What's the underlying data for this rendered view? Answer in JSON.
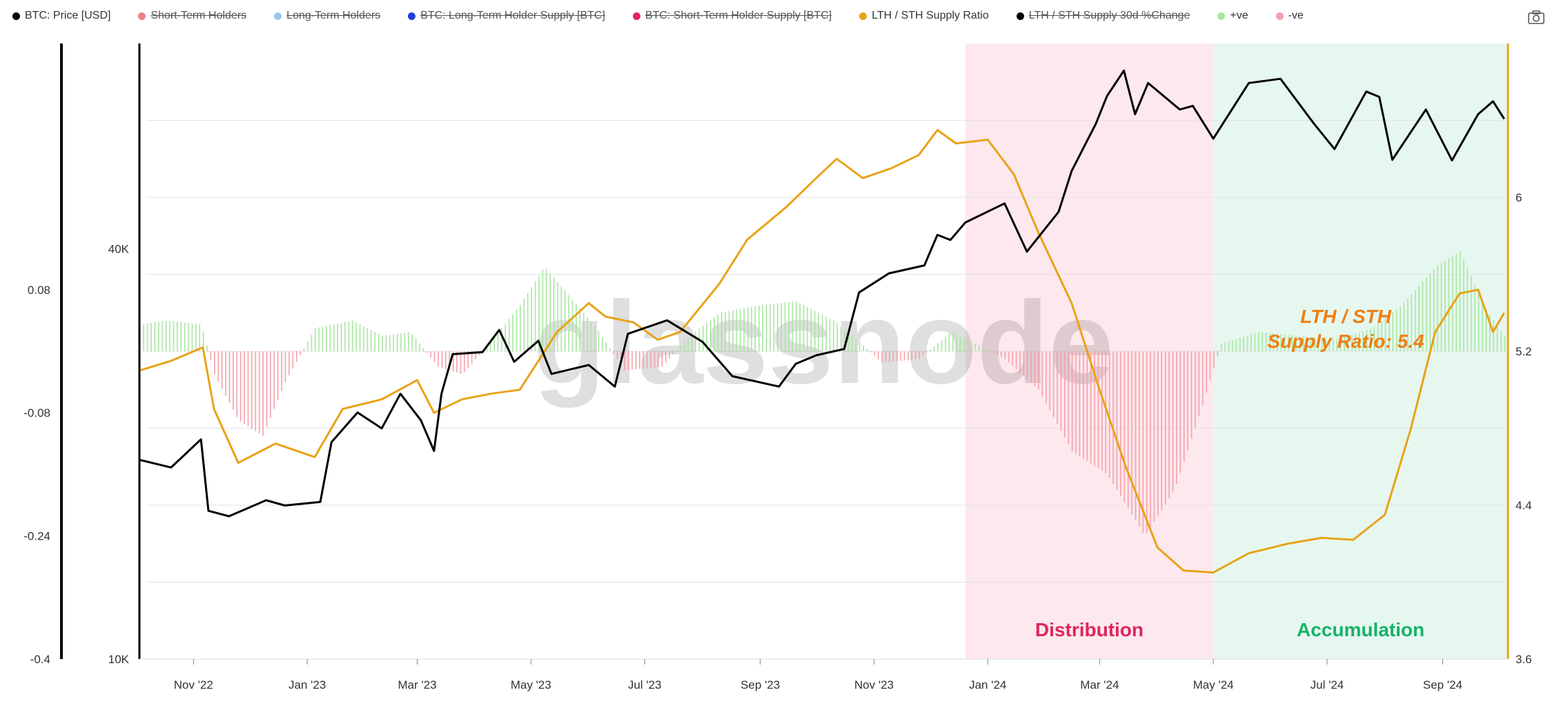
{
  "legend": [
    {
      "label": "BTC: Price [USD]",
      "color": "#000000",
      "active": true
    },
    {
      "label": "Short-Term Holders",
      "color": "#f08080",
      "active": false
    },
    {
      "label": "Long-Term Holders",
      "color": "#9ec5f0",
      "active": false
    },
    {
      "label": "BTC: Long-Term Holder Supply [BTC]",
      "color": "#1f3fd6",
      "active": false
    },
    {
      "label": "BTC: Short-Term Holder Supply [BTC]",
      "color": "#e0245e",
      "active": false
    },
    {
      "label": "LTH / STH Supply Ratio",
      "color": "#e8a317",
      "active": true
    },
    {
      "label": "LTH / STH Supply 30d %Change",
      "color": "#000000",
      "active": false
    },
    {
      "label": "+ve",
      "color": "#a8e6a0",
      "active": true
    },
    {
      "label": "-ve",
      "color": "#f5a0a8",
      "active": true
    }
  ],
  "toolbar": {
    "camera_icon": "camera-icon"
  },
  "chart_data": {
    "type": "line",
    "watermark": "glassnode",
    "x_ticks": [
      "Nov '22",
      "Jan '23",
      "Mar '23",
      "May '23",
      "Jul '23",
      "Sep '23",
      "Nov '23",
      "Jan '24",
      "Mar '24",
      "May '24",
      "Jul '24",
      "Sep '24"
    ],
    "x_tick_dates": [
      "2022-11-01",
      "2023-01-01",
      "2023-03-01",
      "2023-05-01",
      "2023-07-01",
      "2023-09-01",
      "2023-11-01",
      "2024-01-01",
      "2024-03-01",
      "2024-05-01",
      "2024-07-01",
      "2024-09-01"
    ],
    "x_range": [
      "2022-10-03",
      "2024-10-06"
    ],
    "y_left_outer": {
      "ticks": [
        "0.08",
        "-0.08",
        "-0.24",
        "-0.4"
      ],
      "values": [
        0.08,
        -0.08,
        -0.24,
        -0.4
      ],
      "range": [
        -0.4,
        0.4
      ]
    },
    "y_left_inner": {
      "ticks": [
        "40K",
        "10K"
      ],
      "values": [
        40000,
        10000
      ],
      "scale": "log",
      "range": [
        10000,
        80000
      ]
    },
    "y_right": {
      "ticks": [
        "6",
        "5.2",
        "4.4",
        "3.6"
      ],
      "values": [
        6,
        5.2,
        4.4,
        3.6
      ],
      "range": [
        3.6,
        6.8
      ],
      "color": "#e8a317"
    },
    "regions": [
      {
        "label": "Distribution",
        "from": "2023-12-20",
        "to": "2024-05-01",
        "fill": "#fde8ee",
        "label_color": "#e0245e"
      },
      {
        "label": "Accumulation",
        "from": "2024-05-01",
        "to": "2024-10-06",
        "fill": "#e6f7ef",
        "label_color": "#17b26a"
      }
    ],
    "annotation": {
      "lines": [
        "LTH / STH",
        "Supply Ratio: 5.4"
      ],
      "color": "#f07f13"
    },
    "grid": true,
    "series": [
      {
        "name": "BTC: Price [USD]",
        "axis": "y_left_inner",
        "color": "#000000",
        "points": [
          [
            "2022-10-03",
            19600
          ],
          [
            "2022-10-20",
            19100
          ],
          [
            "2022-11-05",
            21000
          ],
          [
            "2022-11-09",
            16500
          ],
          [
            "2022-11-20",
            16200
          ],
          [
            "2022-12-10",
            17100
          ],
          [
            "2022-12-20",
            16800
          ],
          [
            "2023-01-08",
            17000
          ],
          [
            "2023-01-14",
            20800
          ],
          [
            "2023-01-28",
            23000
          ],
          [
            "2023-02-10",
            21800
          ],
          [
            "2023-02-20",
            24500
          ],
          [
            "2023-03-03",
            22400
          ],
          [
            "2023-03-10",
            20200
          ],
          [
            "2023-03-14",
            24500
          ],
          [
            "2023-03-20",
            28000
          ],
          [
            "2023-04-05",
            28200
          ],
          [
            "2023-04-14",
            30400
          ],
          [
            "2023-04-22",
            27300
          ],
          [
            "2023-05-05",
            29300
          ],
          [
            "2023-05-12",
            26200
          ],
          [
            "2023-06-01",
            27000
          ],
          [
            "2023-06-15",
            25100
          ],
          [
            "2023-06-22",
            30000
          ],
          [
            "2023-07-13",
            31400
          ],
          [
            "2023-08-01",
            29200
          ],
          [
            "2023-08-17",
            26000
          ],
          [
            "2023-09-11",
            25100
          ],
          [
            "2023-09-20",
            27100
          ],
          [
            "2023-10-01",
            27900
          ],
          [
            "2023-10-16",
            28500
          ],
          [
            "2023-10-24",
            34500
          ],
          [
            "2023-11-09",
            36800
          ],
          [
            "2023-11-28",
            37800
          ],
          [
            "2023-12-05",
            41900
          ],
          [
            "2023-12-12",
            41200
          ],
          [
            "2023-12-20",
            43700
          ],
          [
            "2024-01-10",
            46600
          ],
          [
            "2024-01-22",
            39600
          ],
          [
            "2024-02-08",
            45300
          ],
          [
            "2024-02-15",
            52000
          ],
          [
            "2024-02-28",
            61000
          ],
          [
            "2024-03-05",
            67000
          ],
          [
            "2024-03-14",
            73000
          ],
          [
            "2024-03-20",
            63000
          ],
          [
            "2024-03-27",
            70000
          ],
          [
            "2024-04-13",
            64000
          ],
          [
            "2024-04-20",
            64800
          ],
          [
            "2024-05-01",
            58000
          ],
          [
            "2024-05-20",
            70000
          ],
          [
            "2024-06-06",
            71000
          ],
          [
            "2024-06-24",
            61000
          ],
          [
            "2024-07-05",
            56000
          ],
          [
            "2024-07-22",
            68000
          ],
          [
            "2024-07-29",
            66800
          ],
          [
            "2024-08-05",
            54000
          ],
          [
            "2024-08-23",
            64000
          ],
          [
            "2024-09-06",
            53900
          ],
          [
            "2024-09-20",
            63000
          ],
          [
            "2024-09-28",
            65800
          ],
          [
            "2024-10-04",
            62000
          ]
        ]
      },
      {
        "name": "LTH / STH Supply Ratio",
        "axis": "y_right",
        "color": "#e8a317",
        "points": [
          [
            "2022-10-03",
            5.1
          ],
          [
            "2022-10-20",
            5.15
          ],
          [
            "2022-11-06",
            5.22
          ],
          [
            "2022-11-12",
            4.9
          ],
          [
            "2022-11-25",
            4.62
          ],
          [
            "2022-12-15",
            4.72
          ],
          [
            "2023-01-05",
            4.65
          ],
          [
            "2023-01-20",
            4.9
          ],
          [
            "2023-02-10",
            4.95
          ],
          [
            "2023-03-01",
            5.05
          ],
          [
            "2023-03-10",
            4.88
          ],
          [
            "2023-03-25",
            4.95
          ],
          [
            "2023-04-10",
            4.98
          ],
          [
            "2023-04-25",
            5.0
          ],
          [
            "2023-05-15",
            5.3
          ],
          [
            "2023-06-01",
            5.45
          ],
          [
            "2023-06-10",
            5.38
          ],
          [
            "2023-06-25",
            5.35
          ],
          [
            "2023-07-08",
            5.26
          ],
          [
            "2023-07-20",
            5.3
          ],
          [
            "2023-08-10",
            5.55
          ],
          [
            "2023-08-25",
            5.78
          ],
          [
            "2023-09-15",
            5.95
          ],
          [
            "2023-10-01",
            6.1
          ],
          [
            "2023-10-12",
            6.2
          ],
          [
            "2023-10-26",
            6.1
          ],
          [
            "2023-11-10",
            6.15
          ],
          [
            "2023-11-25",
            6.22
          ],
          [
            "2023-12-05",
            6.35
          ],
          [
            "2023-12-15",
            6.28
          ],
          [
            "2024-01-01",
            6.3
          ],
          [
            "2024-01-15",
            6.12
          ],
          [
            "2024-01-28",
            5.82
          ],
          [
            "2024-02-15",
            5.45
          ],
          [
            "2024-03-01",
            5.0
          ],
          [
            "2024-03-15",
            4.6
          ],
          [
            "2024-04-01",
            4.18
          ],
          [
            "2024-04-15",
            4.06
          ],
          [
            "2024-05-01",
            4.05
          ],
          [
            "2024-05-20",
            4.15
          ],
          [
            "2024-06-10",
            4.2
          ],
          [
            "2024-06-28",
            4.23
          ],
          [
            "2024-07-15",
            4.22
          ],
          [
            "2024-08-01",
            4.35
          ],
          [
            "2024-08-15",
            4.8
          ],
          [
            "2024-08-28",
            5.3
          ],
          [
            "2024-09-10",
            5.5
          ],
          [
            "2024-09-20",
            5.52
          ],
          [
            "2024-09-28",
            5.3
          ],
          [
            "2024-10-04",
            5.4
          ]
        ]
      },
      {
        "name": "+ve / -ve",
        "axis": "y_left_outer",
        "type": "bar",
        "pos_color": "#a8e6a0",
        "neg_color": "#f5a0a8",
        "points": [
          [
            "2022-10-03",
            0.035
          ],
          [
            "2022-10-18",
            0.04
          ],
          [
            "2022-11-05",
            0.035
          ],
          [
            "2022-11-12",
            -0.03
          ],
          [
            "2022-11-25",
            -0.09
          ],
          [
            "2022-12-08",
            -0.11
          ],
          [
            "2022-12-20",
            -0.04
          ],
          [
            "2023-01-05",
            0.03
          ],
          [
            "2023-01-25",
            0.04
          ],
          [
            "2023-02-10",
            0.02
          ],
          [
            "2023-02-25",
            0.025
          ],
          [
            "2023-03-12",
            -0.02
          ],
          [
            "2023-03-25",
            -0.03
          ],
          [
            "2023-04-10",
            0.015
          ],
          [
            "2023-04-25",
            0.06
          ],
          [
            "2023-05-08",
            0.11
          ],
          [
            "2023-05-22",
            0.07
          ],
          [
            "2023-06-05",
            0.03
          ],
          [
            "2023-06-20",
            -0.025
          ],
          [
            "2023-07-10",
            -0.02
          ],
          [
            "2023-07-25",
            0.02
          ],
          [
            "2023-08-10",
            0.05
          ],
          [
            "2023-09-01",
            0.06
          ],
          [
            "2023-09-20",
            0.065
          ],
          [
            "2023-10-10",
            0.04
          ],
          [
            "2023-10-25",
            0.01
          ],
          [
            "2023-11-05",
            -0.015
          ],
          [
            "2023-11-25",
            -0.01
          ],
          [
            "2023-12-12",
            0.025
          ],
          [
            "2023-12-25",
            0.01
          ],
          [
            "2024-01-10",
            -0.01
          ],
          [
            "2024-01-28",
            -0.05
          ],
          [
            "2024-02-15",
            -0.13
          ],
          [
            "2024-03-05",
            -0.16
          ],
          [
            "2024-03-25",
            -0.24
          ],
          [
            "2024-04-10",
            -0.18
          ],
          [
            "2024-04-25",
            -0.07
          ],
          [
            "2024-05-05",
            0.01
          ],
          [
            "2024-05-25",
            0.025
          ],
          [
            "2024-06-15",
            0.02
          ],
          [
            "2024-07-05",
            0.015
          ],
          [
            "2024-07-25",
            0.03
          ],
          [
            "2024-08-10",
            0.06
          ],
          [
            "2024-08-28",
            0.11
          ],
          [
            "2024-09-10",
            0.13
          ],
          [
            "2024-09-25",
            0.05
          ],
          [
            "2024-10-04",
            0.02
          ]
        ]
      }
    ]
  }
}
